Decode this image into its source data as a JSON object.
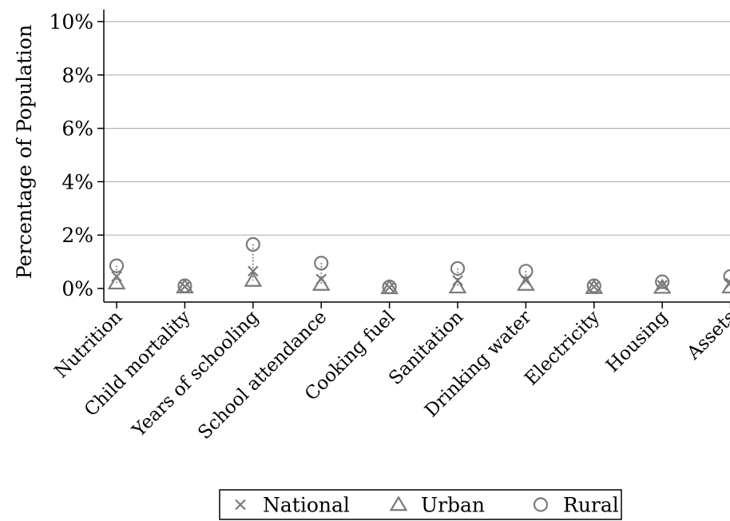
{
  "chart_data": {
    "type": "scatter",
    "ylabel": "Percentage of Population",
    "ylim": [
      0,
      10
    ],
    "yticks": [
      "0%",
      "2%",
      "4%",
      "6%",
      "8%",
      "10%"
    ],
    "grid": true,
    "legend_position": "bottom",
    "categories": [
      "Nutrition",
      "Child mortality",
      "Years of schooling",
      "School attendance",
      "Cooking fuel",
      "Sanitation",
      "Drinking water",
      "Electricity",
      "Housing",
      "Assets"
    ],
    "series": [
      {
        "name": "National",
        "marker": "x",
        "values": [
          0.45,
          0.07,
          0.65,
          0.35,
          0.04,
          0.3,
          0.3,
          0.06,
          0.12,
          0.2
        ]
      },
      {
        "name": "Urban",
        "marker": "triangle",
        "values": [
          0.2,
          0.05,
          0.3,
          0.15,
          0.02,
          0.05,
          0.15,
          0.03,
          0.04,
          0.05
        ]
      },
      {
        "name": "Rural",
        "marker": "circle",
        "values": [
          0.85,
          0.1,
          1.65,
          0.95,
          0.06,
          0.75,
          0.65,
          0.1,
          0.25,
          0.45
        ]
      }
    ],
    "colors": {
      "marker": "#7a7a7a",
      "grid": "#b5b5b5",
      "axis": "#000000"
    }
  }
}
